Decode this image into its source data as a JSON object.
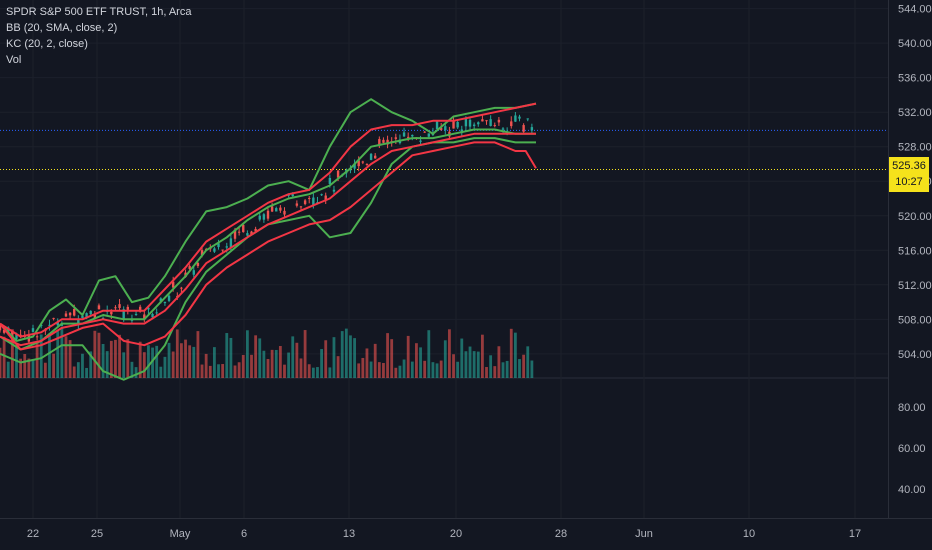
{
  "legend": {
    "symbol": "SPDR S&P 500 ETF TRUST, 1h, Arca",
    "bb": "BB (20, SMA, close, 2)",
    "kc": "KC (20, 2, close)",
    "vol": "Vol"
  },
  "price_tag": {
    "price": "525.36",
    "countdown": "10:27"
  },
  "chart_data": {
    "type": "line",
    "series": [
      {
        "name": "BB (20, SMA, close, 2)",
        "color": "#4caf50",
        "upper": [
          [
            0,
            507.5
          ],
          [
            8,
            505.5
          ],
          [
            16,
            506
          ],
          [
            24,
            509
          ],
          [
            32,
            510.3
          ],
          [
            40,
            508.5
          ],
          [
            48,
            512.5
          ],
          [
            56,
            513
          ],
          [
            64,
            510
          ],
          [
            72,
            510.5
          ],
          [
            80,
            513
          ],
          [
            90,
            517
          ],
          [
            100,
            520.5
          ],
          [
            110,
            521
          ],
          [
            120,
            522
          ],
          [
            130,
            523.5
          ],
          [
            140,
            524
          ],
          [
            150,
            523
          ],
          [
            160,
            528
          ],
          [
            170,
            532
          ],
          [
            180,
            533.5
          ],
          [
            190,
            532
          ],
          [
            200,
            531
          ],
          [
            210,
            529.5
          ],
          [
            220,
            531.5
          ],
          [
            230,
            532
          ],
          [
            240,
            532.5
          ],
          [
            250,
            532.5
          ],
          [
            260,
            533
          ]
        ],
        "middle": [
          [
            0,
            506
          ],
          [
            10,
            504.5
          ],
          [
            20,
            505.5
          ],
          [
            30,
            507.5
          ],
          [
            40,
            507.5
          ],
          [
            50,
            508.5
          ],
          [
            60,
            508
          ],
          [
            70,
            508
          ],
          [
            80,
            510.5
          ],
          [
            90,
            513
          ],
          [
            100,
            516
          ],
          [
            110,
            517.5
          ],
          [
            120,
            519.5
          ],
          [
            130,
            521
          ],
          [
            140,
            522
          ],
          [
            150,
            522.5
          ],
          [
            160,
            523.5
          ],
          [
            170,
            525.5
          ],
          [
            180,
            528
          ],
          [
            190,
            528.5
          ],
          [
            200,
            529
          ],
          [
            210,
            529
          ],
          [
            220,
            529.5
          ],
          [
            230,
            530
          ],
          [
            240,
            530
          ],
          [
            250,
            529.5
          ],
          [
            260,
            529.5
          ]
        ],
        "lower": [
          [
            0,
            504
          ],
          [
            10,
            503
          ],
          [
            20,
            503.5
          ],
          [
            30,
            505
          ],
          [
            40,
            505
          ],
          [
            50,
            502
          ],
          [
            60,
            501
          ],
          [
            70,
            502
          ],
          [
            80,
            505
          ],
          [
            90,
            510
          ],
          [
            100,
            513.5
          ],
          [
            110,
            515.5
          ],
          [
            120,
            517.5
          ],
          [
            130,
            519
          ],
          [
            140,
            519.5
          ],
          [
            150,
            520
          ],
          [
            160,
            517.5
          ],
          [
            170,
            518
          ],
          [
            180,
            521.5
          ],
          [
            190,
            526
          ],
          [
            200,
            528
          ],
          [
            210,
            528.5
          ],
          [
            220,
            528.5
          ],
          [
            230,
            529
          ],
          [
            240,
            529
          ],
          [
            250,
            528.5
          ],
          [
            260,
            528.5
          ]
        ]
      },
      {
        "name": "KC (20, 2, close)",
        "color": "#f23645",
        "upper": [
          [
            0,
            507.5
          ],
          [
            10,
            506
          ],
          [
            20,
            506.5
          ],
          [
            30,
            508
          ],
          [
            40,
            508
          ],
          [
            50,
            509
          ],
          [
            60,
            509
          ],
          [
            70,
            509
          ],
          [
            80,
            511.5
          ],
          [
            90,
            514
          ],
          [
            100,
            517
          ],
          [
            110,
            518.5
          ],
          [
            120,
            520
          ],
          [
            130,
            521.5
          ],
          [
            140,
            522.5
          ],
          [
            150,
            523
          ],
          [
            160,
            525
          ],
          [
            170,
            528
          ],
          [
            180,
            530
          ],
          [
            190,
            530.5
          ],
          [
            200,
            530.5
          ],
          [
            210,
            531
          ],
          [
            220,
            531
          ],
          [
            230,
            531.5
          ],
          [
            240,
            532
          ],
          [
            250,
            532.5
          ],
          [
            260,
            533
          ]
        ],
        "middle": [
          [
            0,
            506
          ],
          [
            10,
            505
          ],
          [
            20,
            505.5
          ],
          [
            30,
            507
          ],
          [
            40,
            507.5
          ],
          [
            50,
            508
          ],
          [
            60,
            507.5
          ],
          [
            70,
            507.5
          ],
          [
            80,
            509
          ],
          [
            90,
            511.5
          ],
          [
            100,
            514.5
          ],
          [
            110,
            516
          ],
          [
            120,
            517.5
          ],
          [
            130,
            519
          ],
          [
            140,
            520
          ],
          [
            150,
            521
          ],
          [
            160,
            522
          ],
          [
            170,
            524
          ],
          [
            180,
            526
          ],
          [
            190,
            527.5
          ],
          [
            200,
            528
          ],
          [
            210,
            528.5
          ],
          [
            220,
            529
          ],
          [
            230,
            529.5
          ],
          [
            240,
            529.5
          ],
          [
            250,
            529.5
          ],
          [
            260,
            529.5
          ]
        ],
        "lower": [
          [
            0,
            507.5
          ],
          [
            10,
            504.5
          ],
          [
            20,
            505
          ],
          [
            30,
            506
          ],
          [
            40,
            507
          ],
          [
            50,
            507.5
          ],
          [
            60,
            505.5
          ],
          [
            70,
            505
          ],
          [
            80,
            506
          ],
          [
            90,
            508.5
          ],
          [
            100,
            512
          ],
          [
            110,
            514
          ],
          [
            120,
            515.5
          ],
          [
            130,
            517
          ],
          [
            140,
            518
          ],
          [
            150,
            519
          ],
          [
            160,
            519.5
          ],
          [
            170,
            521
          ],
          [
            180,
            523
          ],
          [
            190,
            525
          ],
          [
            200,
            527
          ],
          [
            210,
            527.5
          ],
          [
            220,
            528
          ],
          [
            230,
            528.5
          ],
          [
            240,
            528.5
          ],
          [
            250,
            527.5
          ],
          [
            255,
            527.5
          ],
          [
            260,
            525.5
          ]
        ]
      }
    ],
    "price_axis": {
      "labels": [
        "544.00",
        "540.00",
        "536.00",
        "532.00",
        "528.00",
        "524.00",
        "520.00",
        "516.00",
        "512.00",
        "508.00",
        "504.00"
      ],
      "range": [
        501.2,
        545
      ]
    },
    "volume_axis": {
      "labels": [
        "80.00",
        "60.00",
        "40.00"
      ]
    },
    "x_axis": {
      "labels": [
        "22",
        "25",
        "May",
        "6",
        "13",
        "20",
        "28",
        "Jun",
        "10",
        "17"
      ]
    },
    "last_price": 525.36,
    "reference_price": 529.9,
    "grid": true,
    "colors": {
      "up": "#26a69a",
      "down": "#ef5350",
      "bb": "#4caf50",
      "kc": "#f23645",
      "background": "#131722"
    }
  }
}
